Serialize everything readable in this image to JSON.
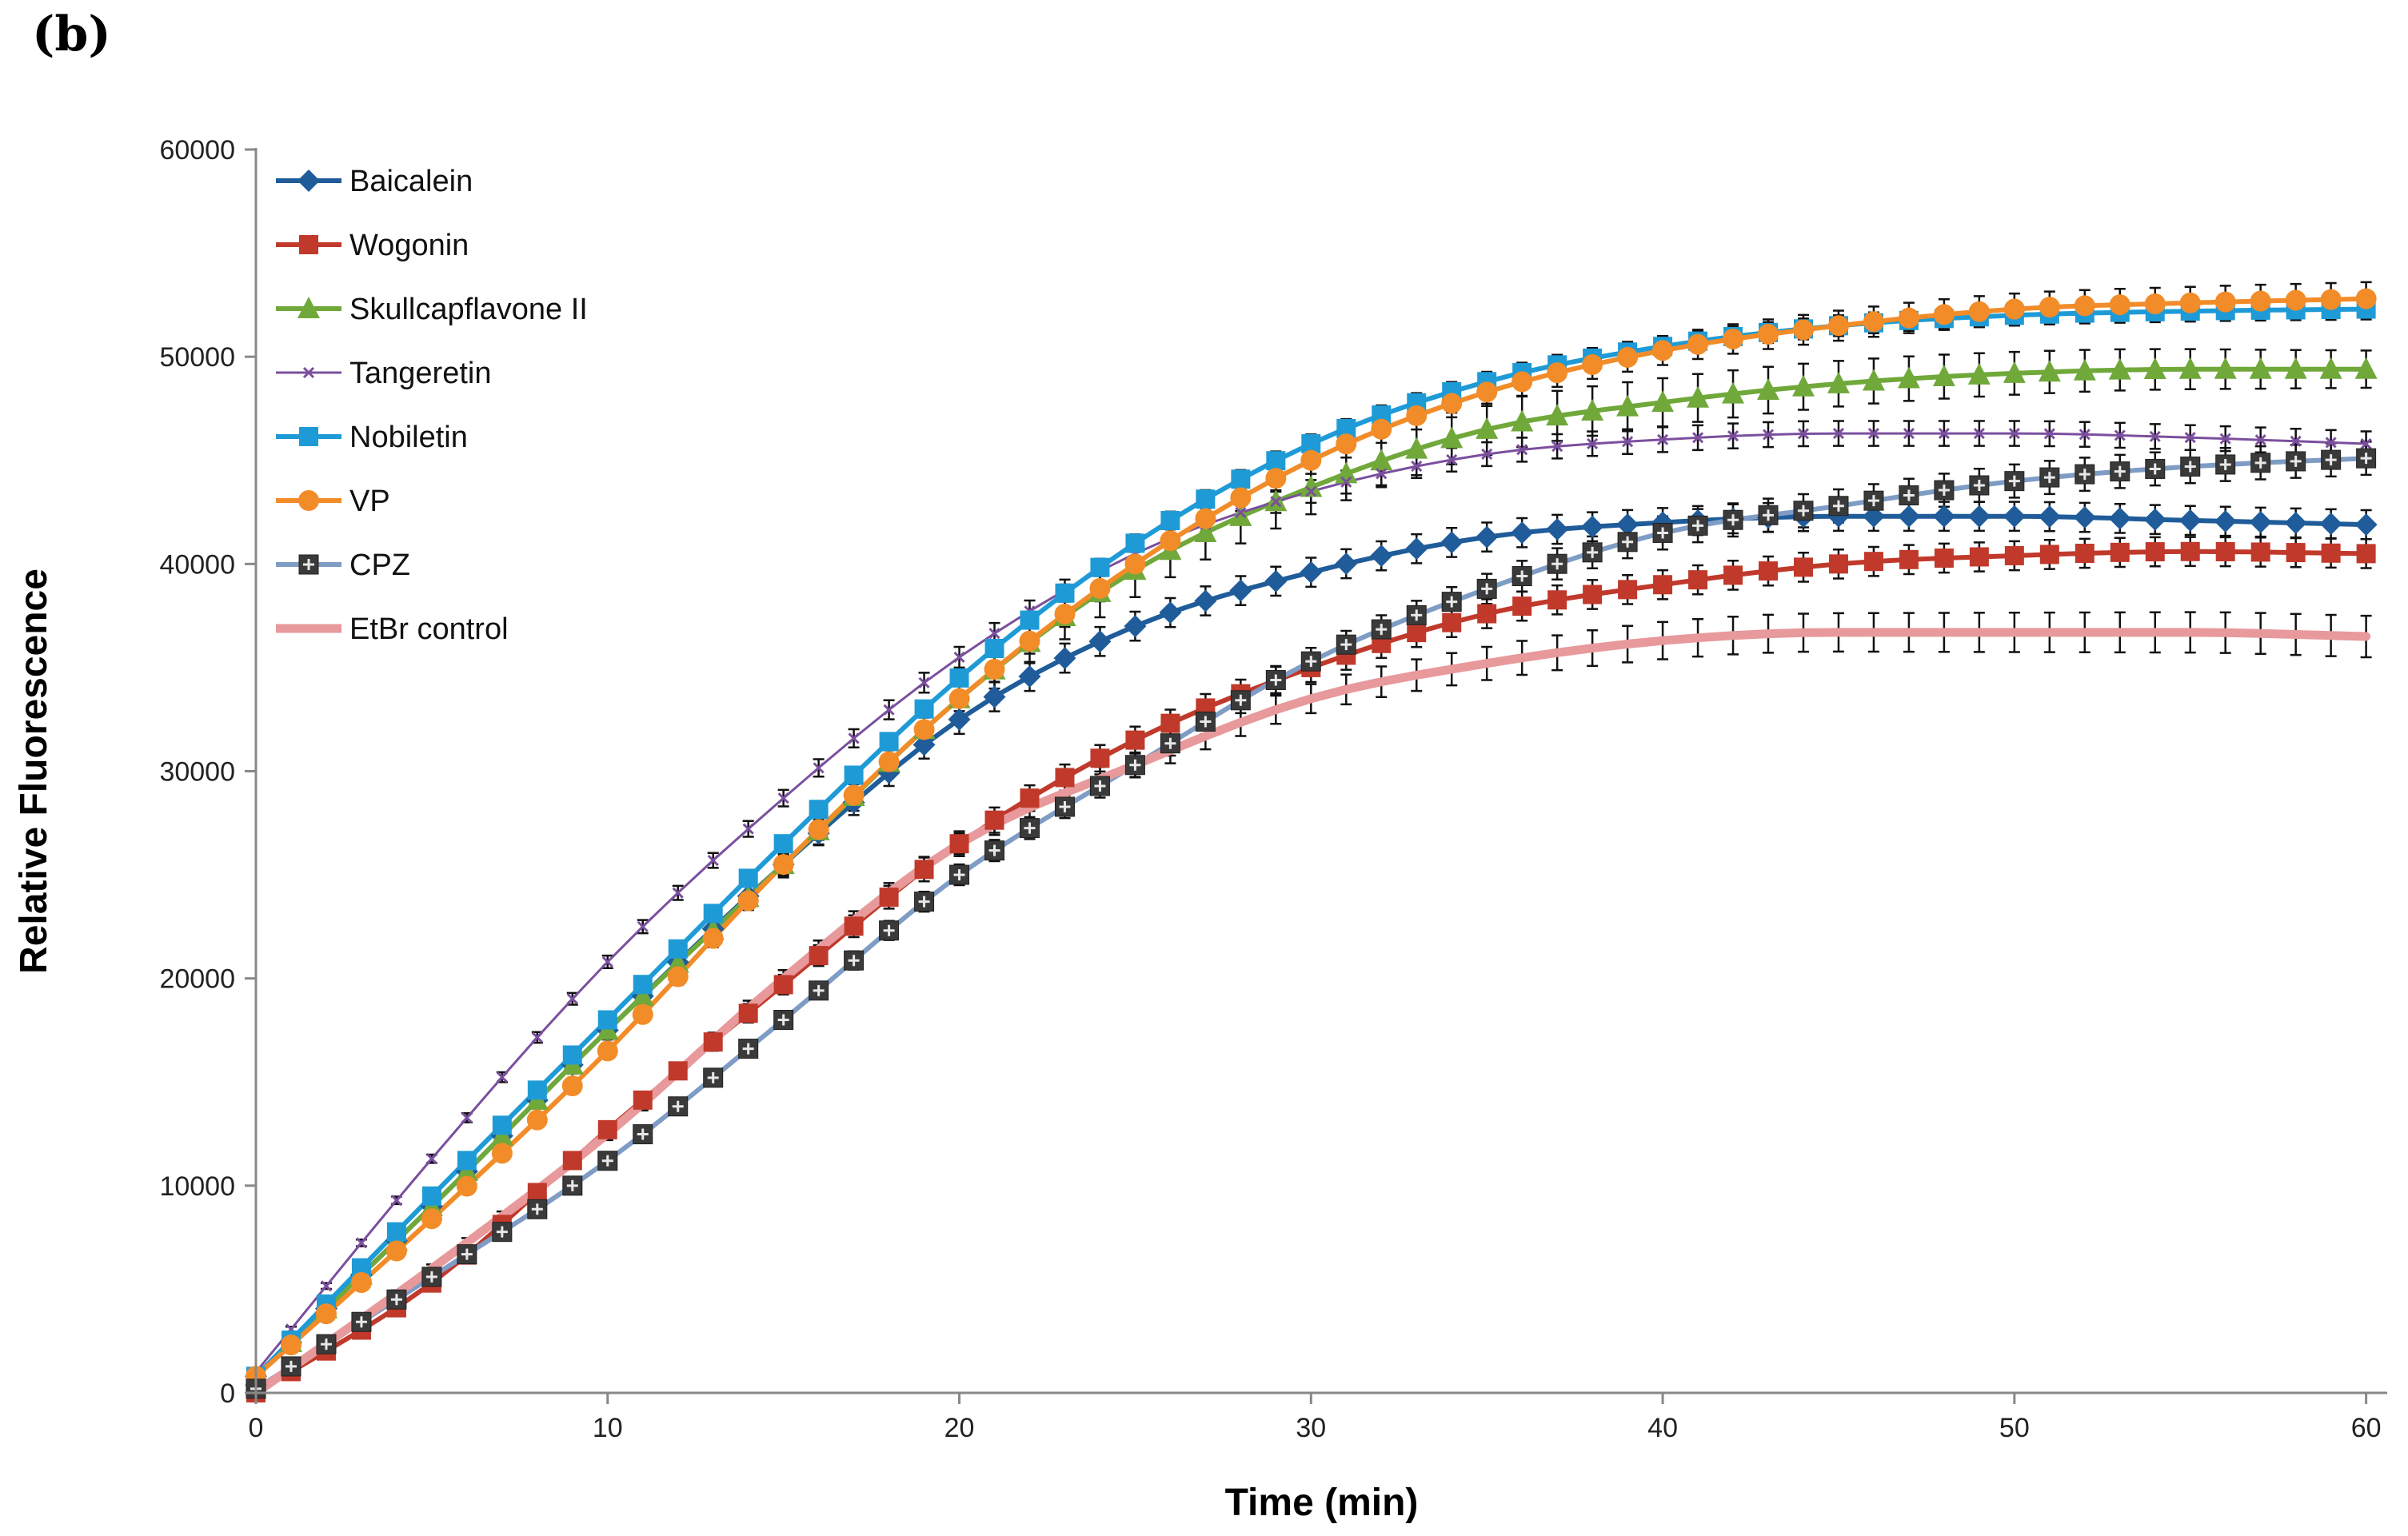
{
  "panel_label": "(b)",
  "chart_data": {
    "type": "line",
    "title": "",
    "xlabel": "Time (min)",
    "ylabel": "Relative Fluorescence",
    "xlim": [
      0,
      60
    ],
    "ylim": [
      0,
      60000
    ],
    "xticks": [
      0,
      10,
      20,
      30,
      40,
      50,
      60
    ],
    "yticks": [
      0,
      10000,
      20000,
      30000,
      40000,
      50000,
      60000
    ],
    "legend_position": "top-left",
    "grid": false,
    "x_step": 1,
    "x_count": 61,
    "series": [
      {
        "name": "Baicalein",
        "color": "#1F5C99",
        "marker": "diamond",
        "anchors": [
          [
            0,
            800
          ],
          [
            5,
            9000
          ],
          [
            10,
            17500
          ],
          [
            15,
            25500
          ],
          [
            20,
            32500
          ],
          [
            25,
            37000
          ],
          [
            30,
            39600
          ],
          [
            35,
            41300
          ],
          [
            40,
            42000
          ],
          [
            45,
            42300
          ],
          [
            50,
            42300
          ],
          [
            55,
            42100
          ],
          [
            60,
            41900
          ]
        ],
        "error": [
          [
            0,
            100
          ],
          [
            20,
            700
          ],
          [
            30,
            700
          ],
          [
            60,
            700
          ]
        ]
      },
      {
        "name": "Wogonin",
        "color": "#C0392B",
        "marker": "square",
        "anchors": [
          [
            0,
            0
          ],
          [
            5,
            5300
          ],
          [
            10,
            12700
          ],
          [
            15,
            19700
          ],
          [
            20,
            26500
          ],
          [
            25,
            31500
          ],
          [
            30,
            35000
          ],
          [
            35,
            37600
          ],
          [
            40,
            39000
          ],
          [
            45,
            40000
          ],
          [
            50,
            40400
          ],
          [
            55,
            40600
          ],
          [
            60,
            40500
          ]
        ],
        "error": [
          [
            0,
            100
          ],
          [
            20,
            600
          ],
          [
            30,
            700
          ],
          [
            60,
            700
          ]
        ]
      },
      {
        "name": "Skullcapflavone II",
        "color": "#70A83A",
        "marker": "triangle",
        "anchors": [
          [
            0,
            800
          ],
          [
            5,
            9000
          ],
          [
            10,
            17500
          ],
          [
            15,
            25500
          ],
          [
            20,
            33500
          ],
          [
            25,
            39700
          ],
          [
            30,
            43700
          ],
          [
            35,
            46500
          ],
          [
            40,
            47800
          ],
          [
            45,
            48700
          ],
          [
            50,
            49200
          ],
          [
            55,
            49400
          ],
          [
            60,
            49400
          ]
        ],
        "error": [
          [
            0,
            100
          ],
          [
            20,
            800
          ],
          [
            25,
            1300
          ],
          [
            30,
            1300
          ],
          [
            60,
            900
          ]
        ]
      },
      {
        "name": "Tangeretin",
        "color": "#7B4F9E",
        "marker": "x",
        "anchors": [
          [
            0,
            1000
          ],
          [
            5,
            11300
          ],
          [
            10,
            20800
          ],
          [
            15,
            28700
          ],
          [
            20,
            35500
          ],
          [
            25,
            40500
          ],
          [
            30,
            43500
          ],
          [
            35,
            45300
          ],
          [
            40,
            46000
          ],
          [
            45,
            46300
          ],
          [
            50,
            46300
          ],
          [
            55,
            46100
          ],
          [
            60,
            45800
          ]
        ],
        "error": [
          [
            0,
            100
          ],
          [
            20,
            500
          ],
          [
            40,
            600
          ],
          [
            60,
            600
          ]
        ]
      },
      {
        "name": "Nobiletin",
        "color": "#1E9BD7",
        "marker": "square",
        "anchors": [
          [
            0,
            800
          ],
          [
            5,
            9500
          ],
          [
            10,
            18000
          ],
          [
            15,
            26500
          ],
          [
            20,
            34500
          ],
          [
            25,
            41000
          ],
          [
            30,
            45800
          ],
          [
            35,
            48800
          ],
          [
            40,
            50500
          ],
          [
            45,
            51500
          ],
          [
            50,
            52000
          ],
          [
            55,
            52200
          ],
          [
            60,
            52300
          ]
        ],
        "error": [
          [
            0,
            100
          ],
          [
            20,
            400
          ],
          [
            40,
            500
          ],
          [
            60,
            500
          ]
        ]
      },
      {
        "name": "VP",
        "color": "#F28C28",
        "marker": "circle",
        "anchors": [
          [
            0,
            800
          ],
          [
            5,
            8400
          ],
          [
            10,
            16500
          ],
          [
            15,
            25500
          ],
          [
            20,
            33500
          ],
          [
            25,
            40000
          ],
          [
            30,
            45000
          ],
          [
            35,
            48300
          ],
          [
            40,
            50300
          ],
          [
            45,
            51500
          ],
          [
            50,
            52300
          ],
          [
            55,
            52600
          ],
          [
            60,
            52800
          ]
        ],
        "error": [
          [
            0,
            100
          ],
          [
            20,
            600
          ],
          [
            40,
            700
          ],
          [
            60,
            800
          ]
        ]
      },
      {
        "name": "CPZ",
        "color": "#7F9CC5",
        "marker": "plus-square",
        "anchors": [
          [
            0,
            200
          ],
          [
            5,
            5600
          ],
          [
            10,
            11200
          ],
          [
            15,
            18000
          ],
          [
            20,
            25000
          ],
          [
            25,
            30300
          ],
          [
            30,
            35300
          ],
          [
            35,
            38800
          ],
          [
            40,
            41500
          ],
          [
            45,
            42800
          ],
          [
            50,
            44000
          ],
          [
            55,
            44700
          ],
          [
            60,
            45100
          ]
        ],
        "error": [
          [
            0,
            100
          ],
          [
            20,
            500
          ],
          [
            40,
            800
          ],
          [
            60,
            800
          ]
        ]
      },
      {
        "name": "EtBr control",
        "color": "#E8999B",
        "marker": "none",
        "anchors": [
          [
            0,
            0
          ],
          [
            5,
            6000
          ],
          [
            10,
            12500
          ],
          [
            15,
            20000
          ],
          [
            20,
            26500
          ],
          [
            25,
            30300
          ],
          [
            30,
            33500
          ],
          [
            35,
            35200
          ],
          [
            40,
            36300
          ],
          [
            45,
            36700
          ],
          [
            50,
            36700
          ],
          [
            55,
            36700
          ],
          [
            60,
            36500
          ]
        ],
        "error": [
          [
            0,
            100
          ],
          [
            20,
            500
          ],
          [
            40,
            900
          ],
          [
            60,
            1000
          ]
        ]
      }
    ]
  }
}
